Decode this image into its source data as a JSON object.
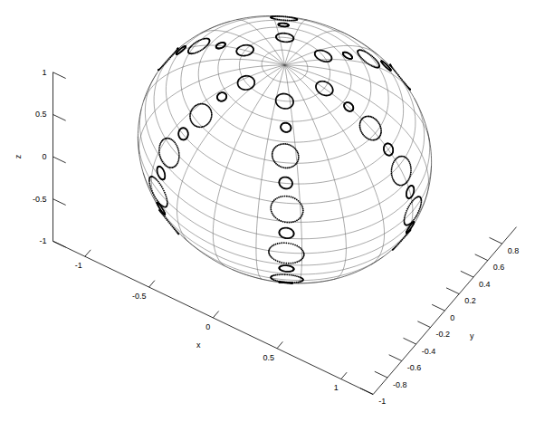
{
  "chart_data": {
    "type": "scatter3d",
    "xlabel": "x",
    "ylabel": "y",
    "zlabel": "z",
    "xlim": [
      -1.25,
      1.25
    ],
    "ylim": [
      -1,
      1
    ],
    "zlim": [
      -1,
      1
    ],
    "xticks": [
      -1,
      -0.5,
      0,
      0.5,
      1
    ],
    "yticks": [
      -1,
      -0.8,
      -0.6,
      -0.4,
      -0.2,
      0,
      0.2,
      0.4,
      0.6,
      0.8
    ],
    "zticks": [
      -1,
      -0.5,
      0,
      0.5,
      1
    ],
    "grid": true,
    "sphere_radius": 1,
    "marker": "ring",
    "color": "#000000",
    "x": [
      0.31,
      0.5,
      0.67,
      0.81,
      0.91,
      0.98,
      1,
      0.98,
      0.91,
      0.81,
      0.67,
      0.5,
      0.31,
      0.15,
      0.25,
      0.33,
      0.4,
      0.46,
      0.49,
      0.5,
      0.49,
      0.46,
      0.4,
      0.33,
      0.25,
      0.15,
      -0.15,
      -0.25,
      -0.33,
      -0.4,
      -0.46,
      -0.49,
      -0.5,
      -0.49,
      -0.46,
      -0.4,
      -0.33,
      -0.25,
      -0.15,
      -0.31,
      -0.5,
      -0.67,
      -0.81,
      -0.91,
      -0.98,
      -1,
      -0.98,
      -0.91,
      -0.81,
      -0.67,
      -0.5,
      -0.31,
      -0.15,
      -0.25,
      -0.33,
      -0.4,
      -0.46,
      -0.49,
      -0.5,
      -0.49,
      -0.46,
      -0.4,
      -0.33,
      -0.25,
      -0.15,
      0.15,
      0.25,
      0.33,
      0.4,
      0.46,
      0.49,
      0.5,
      0.49,
      0.46,
      0.4,
      0.33,
      0.25,
      0.15
    ],
    "y": [
      0,
      0,
      0,
      0,
      0,
      0,
      0,
      0,
      0,
      0,
      0,
      0,
      0,
      0.27,
      0.43,
      0.58,
      0.7,
      0.79,
      0.85,
      0.87,
      0.85,
      0.79,
      0.7,
      0.58,
      0.43,
      0.27,
      0.27,
      0.43,
      0.58,
      0.7,
      0.79,
      0.85,
      0.87,
      0.85,
      0.79,
      0.7,
      0.58,
      0.43,
      0.27,
      0,
      0,
      0,
      0,
      0,
      0,
      0,
      0,
      0,
      0,
      0,
      0,
      0,
      -0.27,
      -0.43,
      -0.58,
      -0.7,
      -0.79,
      -0.85,
      -0.87,
      -0.85,
      -0.79,
      -0.7,
      -0.58,
      -0.43,
      -0.27,
      -0.27,
      -0.43,
      -0.58,
      -0.7,
      -0.79,
      -0.85,
      -0.87,
      -0.85,
      -0.79,
      -0.7,
      -0.58,
      -0.43,
      -0.27
    ],
    "z": [
      0.95,
      0.87,
      0.74,
      0.59,
      0.41,
      0.21,
      0,
      -0.21,
      -0.41,
      -0.59,
      -0.74,
      -0.87,
      -0.95,
      0.95,
      0.87,
      0.74,
      0.59,
      0.41,
      0.21,
      0,
      -0.21,
      -0.41,
      -0.59,
      -0.74,
      -0.87,
      -0.95,
      0.95,
      0.87,
      0.74,
      0.59,
      0.41,
      0.21,
      0,
      -0.21,
      -0.41,
      -0.59,
      -0.74,
      -0.87,
      -0.95,
      0.95,
      0.87,
      0.74,
      0.59,
      0.41,
      0.21,
      0,
      -0.21,
      -0.41,
      -0.59,
      -0.74,
      -0.87,
      -0.95,
      0.95,
      0.87,
      0.74,
      0.59,
      0.41,
      0.21,
      0,
      -0.21,
      -0.41,
      -0.59,
      -0.74,
      -0.87,
      -0.95,
      0.95,
      0.87,
      0.74,
      0.59,
      0.41,
      0.21,
      0,
      -0.21,
      -0.41,
      -0.59,
      -0.74,
      -0.87,
      -0.95
    ],
    "size": [
      0.06,
      0.035,
      0.09,
      0.045,
      0.11,
      0.05,
      0.12,
      0.05,
      0.11,
      0.045,
      0.09,
      0.035,
      0.06,
      0.06,
      0.035,
      0.09,
      0.045,
      0.11,
      0.05,
      0.12,
      0.05,
      0.11,
      0.045,
      0.09,
      0.035,
      0.06,
      0.06,
      0.035,
      0.09,
      0.045,
      0.11,
      0.05,
      0.12,
      0.05,
      0.11,
      0.045,
      0.09,
      0.035,
      0.06,
      0.06,
      0.035,
      0.09,
      0.045,
      0.11,
      0.05,
      0.12,
      0.05,
      0.11,
      0.045,
      0.09,
      0.035,
      0.06,
      0.06,
      0.035,
      0.09,
      0.045,
      0.11,
      0.05,
      0.12,
      0.05,
      0.11,
      0.045,
      0.09,
      0.035,
      0.06,
      0.06,
      0.035,
      0.09,
      0.045,
      0.11,
      0.05,
      0.12,
      0.05,
      0.11,
      0.045,
      0.09,
      0.035,
      0.06
    ]
  }
}
